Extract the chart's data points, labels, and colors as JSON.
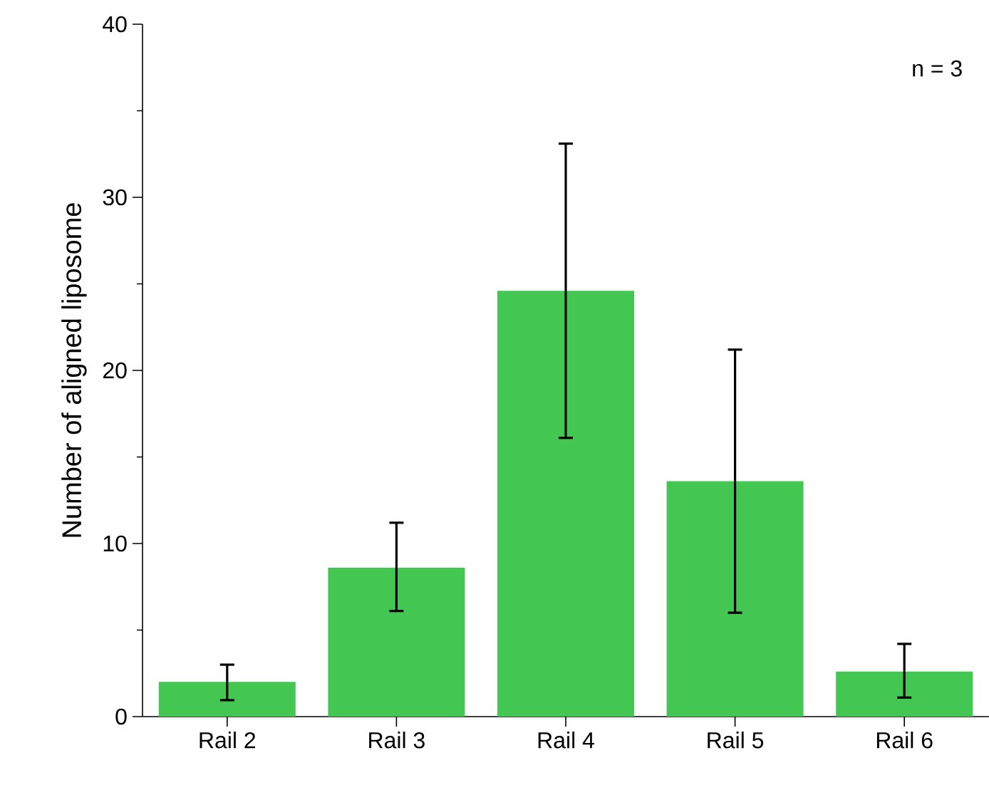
{
  "chart_data": {
    "type": "bar",
    "ylabel": "Number of aligned liposome",
    "categories": [
      "Rail 2",
      "Rail 3",
      "Rail 4",
      "Rail 5",
      "Rail 6"
    ],
    "values": [
      2.0,
      8.6,
      24.6,
      13.6,
      2.6
    ],
    "errors": [
      [
        0.95,
        3.0
      ],
      [
        6.1,
        11.2
      ],
      [
        16.1,
        33.1
      ],
      [
        6.0,
        21.2
      ],
      [
        1.1,
        4.2
      ]
    ],
    "color": "#44c653",
    "ylim": [
      0,
      40
    ],
    "yticks": [
      0,
      10,
      20,
      30,
      40
    ],
    "grid": false,
    "annotations": [
      "n = 3"
    ]
  }
}
